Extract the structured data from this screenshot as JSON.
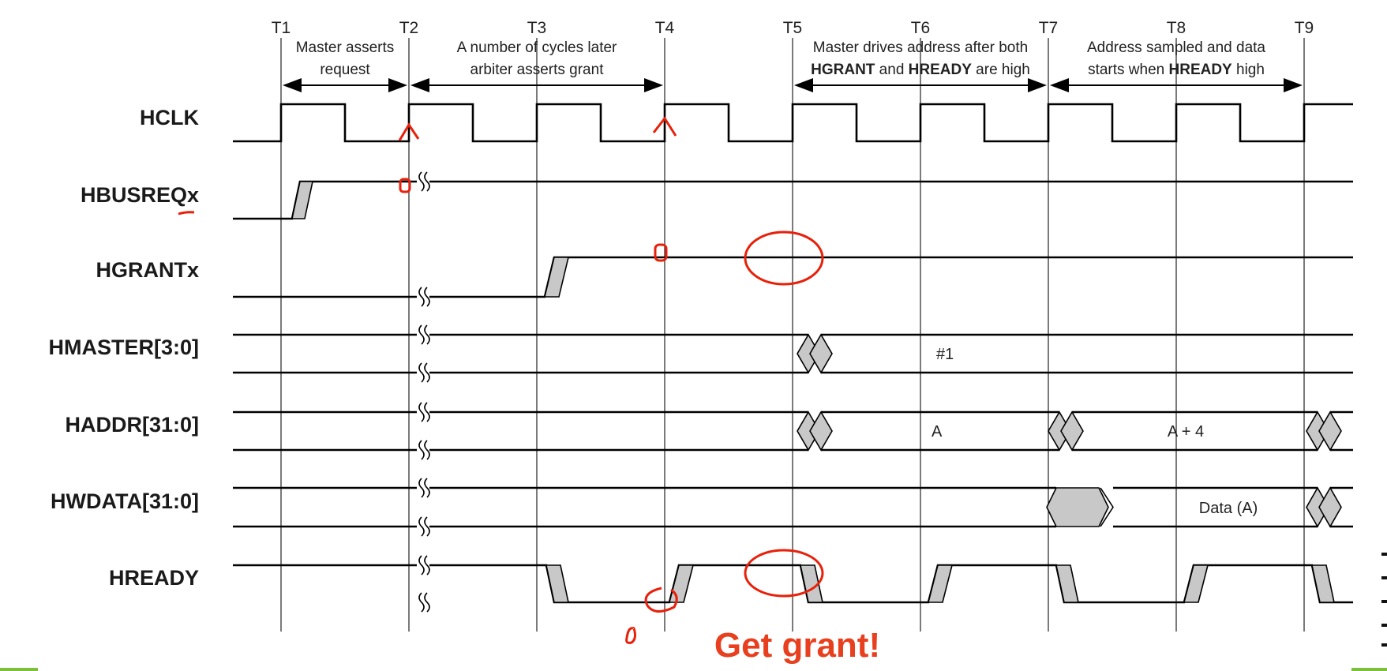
{
  "time_markers": [
    "T1",
    "T2",
    "T3",
    "T4",
    "T5",
    "T6",
    "T7",
    "T8",
    "T9"
  ],
  "annotations": [
    {
      "lines": [
        "Master asserts",
        "request"
      ]
    },
    {
      "lines": [
        "A number of cycles later",
        "arbiter asserts grant"
      ]
    },
    {
      "lines": [
        "Master drives address after both",
        [
          {
            "t": "HGRANT",
            "b": true
          },
          {
            "t": " and ",
            "b": false
          },
          {
            "t": "HREADY",
            "b": true
          },
          {
            "t": " are high",
            "b": false
          }
        ]
      ]
    },
    {
      "lines": [
        "Address sampled and data",
        [
          {
            "t": "starts when ",
            "b": false
          },
          {
            "t": "HREADY",
            "b": true
          },
          {
            "t": " high",
            "b": false
          }
        ]
      ]
    }
  ],
  "signals": [
    "HCLK",
    "HBUSREQx",
    "HGRANTx",
    "HMASTER[3:0]",
    "HADDR[31:0]",
    "HWDATA[31:0]",
    "HREADY"
  ],
  "bus_values": {
    "hmaster": "#1",
    "haddr_1": "A",
    "haddr_2": "A + 4",
    "hwdata": "Data (A)"
  },
  "callout": "Get grant!",
  "colors": {
    "callout": "#e8401f",
    "markup": "#e8200a",
    "transition_fill": "#c8c8c8",
    "accent_bar": "#7bbf3a"
  }
}
